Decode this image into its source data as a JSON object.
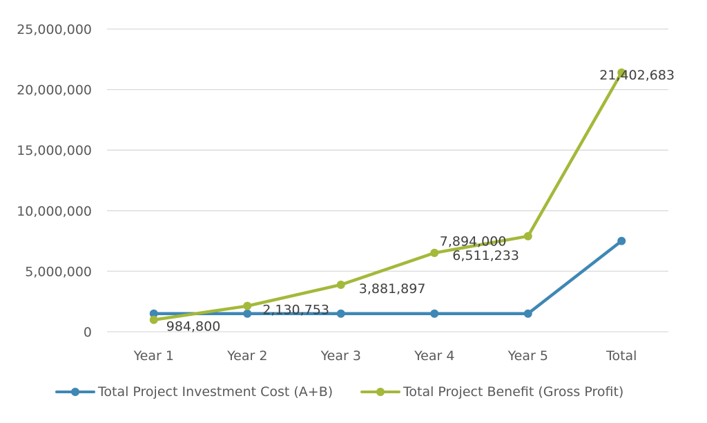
{
  "chart_data": {
    "type": "line",
    "title": "",
    "xlabel": "",
    "ylabel": "",
    "categories": [
      "Year 1",
      "Year 2",
      "Year 3",
      "Year 4",
      "Year 5",
      "Total"
    ],
    "ylim": [
      0,
      25000000
    ],
    "yticks": [
      0,
      5000000,
      10000000,
      15000000,
      20000000,
      25000000
    ],
    "ytick_labels": [
      "0",
      "5,000,000",
      "10,000,000",
      "15,000,000",
      "20,000,000",
      "25,000,000"
    ],
    "grid": true,
    "legend_position": "bottom",
    "series": [
      {
        "name": "Total Project Investment Cost (A+B)",
        "color": "#3F87B5",
        "values": [
          1500000,
          1500000,
          1500000,
          1500000,
          1500000,
          7500000
        ],
        "data_labels": [
          "",
          "",
          "",
          "",
          "",
          ""
        ]
      },
      {
        "name": "Total Project Benefit (Gross Profit)",
        "color": "#A3B93A",
        "values": [
          984800,
          2130753,
          3881897,
          6511233,
          7894000,
          21402683
        ],
        "data_labels": [
          "984,800",
          "2,130,753",
          "3,881,897",
          "6,511,233",
          "7,894,000",
          "21,402,683"
        ]
      }
    ]
  }
}
